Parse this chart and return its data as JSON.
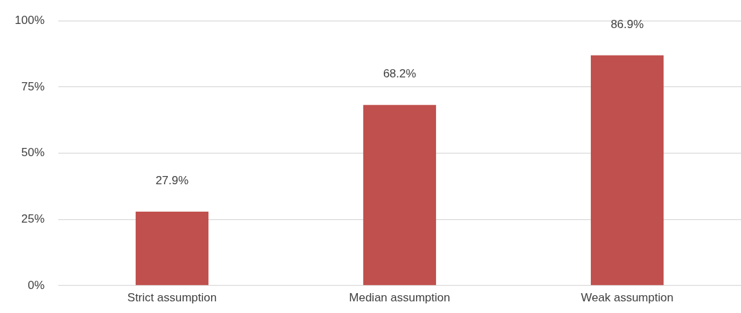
{
  "chart_data": {
    "type": "bar",
    "categories": [
      "Strict assumption",
      "Median assumption",
      "Weak assumption"
    ],
    "values": [
      27.9,
      68.2,
      86.9
    ],
    "color": "#c0504d",
    "value_labels": [
      "27.9%",
      "68.2%",
      "86.9%"
    ],
    "ylim": [
      0,
      100
    ],
    "yticks": [
      {
        "value": 0,
        "label": "0%"
      },
      {
        "value": 25,
        "label": "25%"
      },
      {
        "value": 50,
        "label": "50%"
      },
      {
        "value": 75,
        "label": "75%"
      },
      {
        "value": 100,
        "label": "100%"
      }
    ],
    "grid": "y",
    "legend": false
  }
}
